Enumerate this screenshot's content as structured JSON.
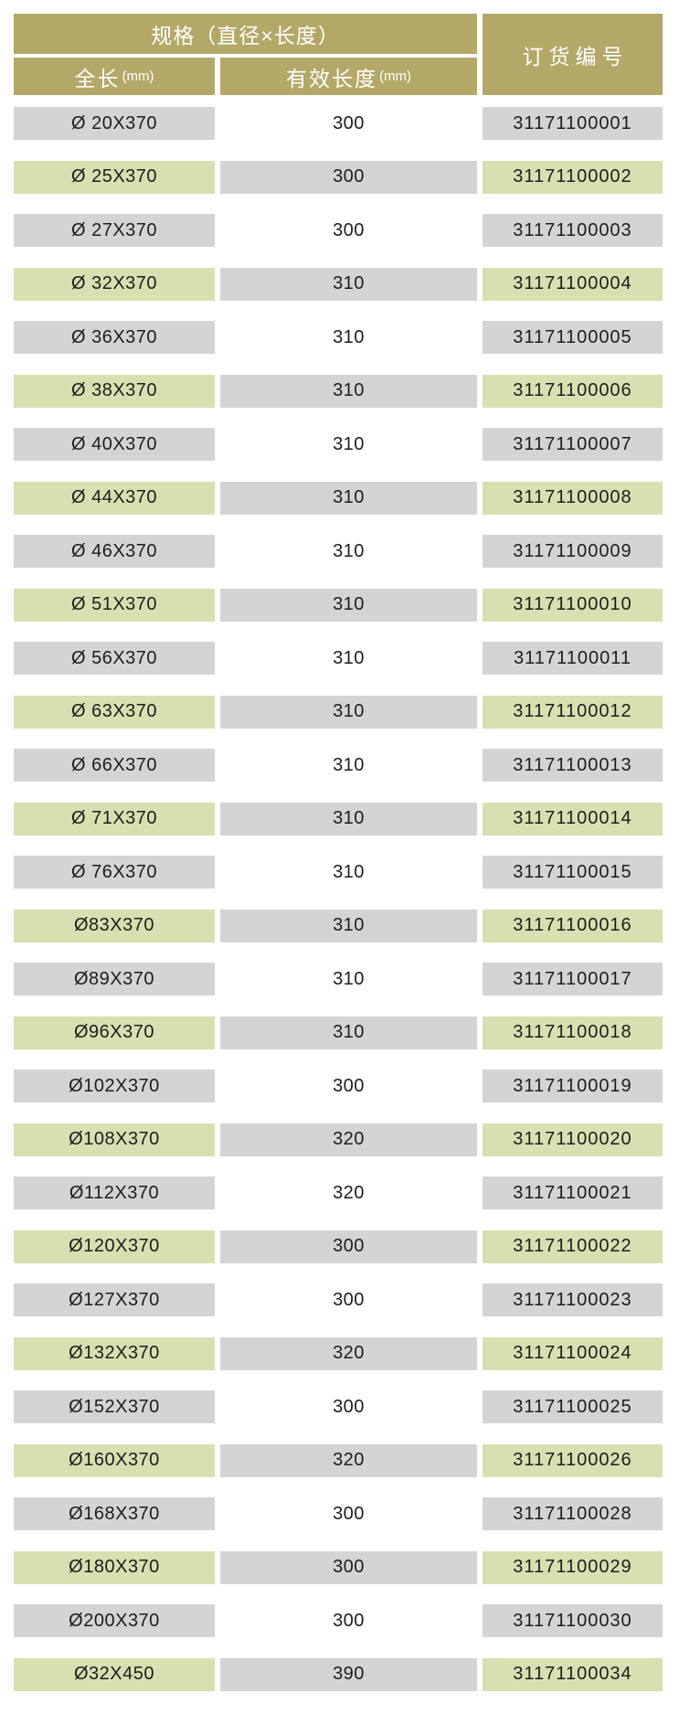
{
  "colors": {
    "header_bg": "#b4a868",
    "header_text": "#ffffff",
    "gray_cell": "#d4d4d6",
    "green_cell": "#d7e0b0",
    "text": "#1d1d1d",
    "page_bg": "#ffffff"
  },
  "table": {
    "header": {
      "spec_title": "规格（直径×长度）",
      "order_title": "订货编号",
      "sub_col1_label": "全长",
      "sub_col1_unit": "(mm)",
      "sub_col2_label": "有效长度",
      "sub_col2_unit": "(mm)"
    },
    "rows": [
      {
        "spec": "Ø 20X370",
        "effective_length": "300",
        "order_no": "31171100001",
        "variant": "gray"
      },
      {
        "spec": "Ø 25X370",
        "effective_length": "300",
        "order_no": "31171100002",
        "variant": "green"
      },
      {
        "spec": "Ø 27X370",
        "effective_length": "300",
        "order_no": "31171100003",
        "variant": "gray"
      },
      {
        "spec": "Ø 32X370",
        "effective_length": "310",
        "order_no": "31171100004",
        "variant": "green"
      },
      {
        "spec": "Ø 36X370",
        "effective_length": "310",
        "order_no": "31171100005",
        "variant": "gray"
      },
      {
        "spec": "Ø 38X370",
        "effective_length": "310",
        "order_no": "31171100006",
        "variant": "green"
      },
      {
        "spec": "Ø 40X370",
        "effective_length": "310",
        "order_no": "31171100007",
        "variant": "gray"
      },
      {
        "spec": "Ø 44X370",
        "effective_length": "310",
        "order_no": "31171100008",
        "variant": "green"
      },
      {
        "spec": "Ø 46X370",
        "effective_length": "310",
        "order_no": "31171100009",
        "variant": "gray"
      },
      {
        "spec": "Ø 51X370",
        "effective_length": "310",
        "order_no": "31171100010",
        "variant": "green"
      },
      {
        "spec": "Ø 56X370",
        "effective_length": "310",
        "order_no": "31171100011",
        "variant": "gray"
      },
      {
        "spec": "Ø 63X370",
        "effective_length": "310",
        "order_no": "31171100012",
        "variant": "green"
      },
      {
        "spec": "Ø 66X370",
        "effective_length": "310",
        "order_no": "31171100013",
        "variant": "gray"
      },
      {
        "spec": "Ø 71X370",
        "effective_length": "310",
        "order_no": "31171100014",
        "variant": "green"
      },
      {
        "spec": "Ø 76X370",
        "effective_length": "310",
        "order_no": "31171100015",
        "variant": "gray"
      },
      {
        "spec": "Ø83X370",
        "effective_length": "310",
        "order_no": "31171100016",
        "variant": "green"
      },
      {
        "spec": "Ø89X370",
        "effective_length": "310",
        "order_no": "31171100017",
        "variant": "gray"
      },
      {
        "spec": "Ø96X370",
        "effective_length": "310",
        "order_no": "31171100018",
        "variant": "green"
      },
      {
        "spec": "Ø102X370",
        "effective_length": "300",
        "order_no": "31171100019",
        "variant": "gray"
      },
      {
        "spec": "Ø108X370",
        "effective_length": "320",
        "order_no": "31171100020",
        "variant": "green"
      },
      {
        "spec": "Ø112X370",
        "effective_length": "320",
        "order_no": "31171100021",
        "variant": "gray"
      },
      {
        "spec": "Ø120X370",
        "effective_length": "300",
        "order_no": "31171100022",
        "variant": "green"
      },
      {
        "spec": "Ø127X370",
        "effective_length": "300",
        "order_no": "31171100023",
        "variant": "gray"
      },
      {
        "spec": "Ø132X370",
        "effective_length": "320",
        "order_no": "31171100024",
        "variant": "green"
      },
      {
        "spec": "Ø152X370",
        "effective_length": "300",
        "order_no": "31171100025",
        "variant": "gray"
      },
      {
        "spec": "Ø160X370",
        "effective_length": "320",
        "order_no": "31171100026",
        "variant": "green"
      },
      {
        "spec": "Ø168X370",
        "effective_length": "300",
        "order_no": "31171100028",
        "variant": "gray"
      },
      {
        "spec": "Ø180X370",
        "effective_length": "300",
        "order_no": "31171100029",
        "variant": "green"
      },
      {
        "spec": "Ø200X370",
        "effective_length": "300",
        "order_no": "31171100030",
        "variant": "gray"
      },
      {
        "spec": "Ø32X450",
        "effective_length": "390",
        "order_no": "31171100034",
        "variant": "green"
      }
    ]
  }
}
